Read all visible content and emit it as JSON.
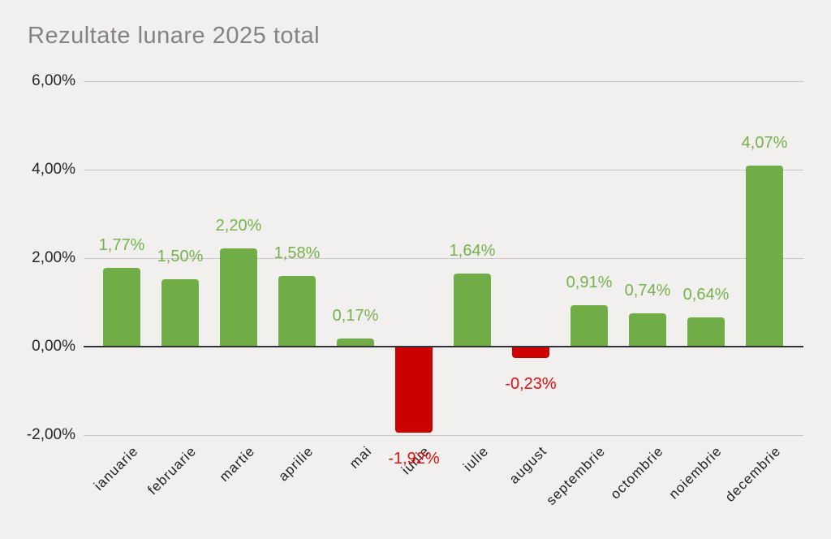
{
  "title": "Rezultate lunare 2025 total",
  "colors": {
    "background": "#f1f0ee",
    "title_text": "#838383",
    "axis_text": "#262626",
    "gridline": "#c9c8c6",
    "zero_line": "#333333",
    "positive": "#70ad47",
    "positive_label": "#76b14e",
    "negative": "#cc0000",
    "negative_label": "#e01010"
  },
  "chart_data": {
    "type": "bar",
    "title": "Rezultate lunare 2025 total",
    "categories": [
      "ianuarie",
      "februarie",
      "martie",
      "aprilie",
      "mai",
      "iunie",
      "iulie",
      "august",
      "septembrie",
      "octombrie",
      "noiembrie",
      "decembrie"
    ],
    "values": [
      1.77,
      1.5,
      2.2,
      1.58,
      0.17,
      -1.92,
      1.64,
      -0.23,
      0.91,
      0.74,
      0.64,
      4.07
    ],
    "value_labels": [
      "1,77%",
      "1,50%",
      "2,20%",
      "1,58%",
      "0,17%",
      "-1,92%",
      "1,64%",
      "-0,23%",
      "0,91%",
      "0,74%",
      "0,64%",
      "4,07%"
    ],
    "xlabel": "",
    "ylabel": "",
    "y_tick_labels": [
      "6,00%",
      "4,00%",
      "2,00%",
      "0,00%",
      "-2,00%"
    ],
    "y_tick_values": [
      6,
      4,
      2,
      0,
      -2
    ],
    "ylim": [
      -2.4,
      6
    ],
    "grid": true,
    "legend": false,
    "bar_colors_rule": "green #70ad47 for positive values, red #cc0000 for negative values",
    "x_tick_rotation_deg": 45
  }
}
